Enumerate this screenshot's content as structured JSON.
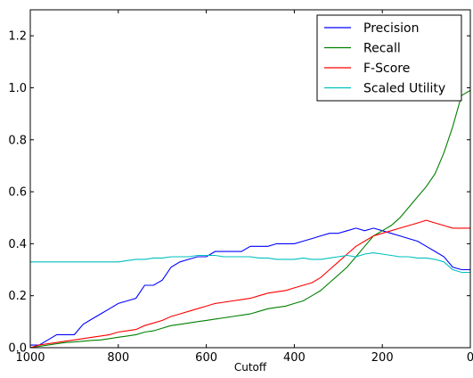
{
  "chart_data": {
    "type": "line",
    "title": "",
    "xlabel": "Cutoff",
    "ylabel": "",
    "xlim": [
      1000,
      0
    ],
    "ylim": [
      0,
      1.3
    ],
    "x_ticks": [
      "1000",
      "800",
      "600",
      "400",
      "200",
      "0"
    ],
    "y_ticks": [
      "0.0",
      "0.2",
      "0.4",
      "0.6",
      "0.8",
      "1.0",
      "1.2"
    ],
    "grid": false,
    "legend_position": "top-right",
    "x": [
      1000,
      980,
      960,
      940,
      920,
      900,
      880,
      860,
      840,
      820,
      800,
      780,
      760,
      740,
      720,
      700,
      680,
      660,
      640,
      620,
      600,
      580,
      560,
      540,
      520,
      500,
      480,
      460,
      440,
      420,
      400,
      380,
      360,
      340,
      320,
      300,
      280,
      260,
      240,
      220,
      200,
      180,
      160,
      140,
      120,
      100,
      80,
      60,
      40,
      20,
      0
    ],
    "series": [
      {
        "name": "Precision",
        "color": "#0000ff",
        "values": [
          0.01,
          0.01,
          0.03,
          0.05,
          0.05,
          0.05,
          0.09,
          0.11,
          0.13,
          0.15,
          0.17,
          0.18,
          0.19,
          0.24,
          0.24,
          0.26,
          0.31,
          0.33,
          0.34,
          0.35,
          0.35,
          0.37,
          0.37,
          0.37,
          0.37,
          0.39,
          0.39,
          0.39,
          0.4,
          0.4,
          0.4,
          0.41,
          0.42,
          0.43,
          0.44,
          0.44,
          0.45,
          0.46,
          0.45,
          0.46,
          0.45,
          0.44,
          0.43,
          0.42,
          0.41,
          0.39,
          0.37,
          0.35,
          0.31,
          0.3,
          0.3
        ]
      },
      {
        "name": "Recall",
        "color": "#008000",
        "values": [
          0.0,
          0.005,
          0.01,
          0.015,
          0.02,
          0.022,
          0.025,
          0.028,
          0.03,
          0.035,
          0.04,
          0.045,
          0.05,
          0.06,
          0.065,
          0.075,
          0.085,
          0.09,
          0.095,
          0.1,
          0.105,
          0.11,
          0.115,
          0.12,
          0.125,
          0.13,
          0.14,
          0.15,
          0.155,
          0.16,
          0.17,
          0.18,
          0.2,
          0.22,
          0.25,
          0.28,
          0.31,
          0.35,
          0.39,
          0.43,
          0.45,
          0.47,
          0.5,
          0.54,
          0.58,
          0.62,
          0.67,
          0.75,
          0.85,
          0.97,
          0.99
        ]
      },
      {
        "name": "F-Score",
        "color": "#ff0000",
        "values": [
          0.0,
          0.01,
          0.015,
          0.02,
          0.025,
          0.03,
          0.035,
          0.04,
          0.045,
          0.05,
          0.06,
          0.065,
          0.07,
          0.085,
          0.095,
          0.105,
          0.12,
          0.13,
          0.14,
          0.15,
          0.16,
          0.17,
          0.175,
          0.18,
          0.185,
          0.19,
          0.2,
          0.21,
          0.215,
          0.22,
          0.23,
          0.24,
          0.25,
          0.27,
          0.3,
          0.33,
          0.36,
          0.39,
          0.41,
          0.43,
          0.44,
          0.45,
          0.46,
          0.47,
          0.48,
          0.49,
          0.48,
          0.47,
          0.46,
          0.46,
          0.46
        ]
      },
      {
        "name": "Scaled Utility",
        "color": "#00bfbf",
        "values": [
          0.33,
          0.33,
          0.33,
          0.33,
          0.33,
          0.33,
          0.33,
          0.33,
          0.33,
          0.33,
          0.33,
          0.335,
          0.34,
          0.34,
          0.345,
          0.345,
          0.35,
          0.35,
          0.35,
          0.355,
          0.355,
          0.355,
          0.35,
          0.35,
          0.35,
          0.35,
          0.345,
          0.345,
          0.34,
          0.34,
          0.34,
          0.345,
          0.34,
          0.34,
          0.345,
          0.35,
          0.355,
          0.35,
          0.36,
          0.365,
          0.36,
          0.355,
          0.35,
          0.35,
          0.345,
          0.345,
          0.34,
          0.33,
          0.3,
          0.29,
          0.29
        ]
      }
    ]
  }
}
